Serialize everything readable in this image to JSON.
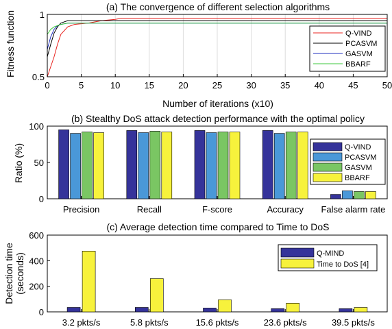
{
  "chart_data": [
    {
      "type": "line",
      "title": "(a) The convergence of different selection algorithms",
      "xlabel": "Number of iterations (x10)",
      "ylabel": "Fitness function",
      "xlim": [
        0,
        50
      ],
      "ylim": [
        0.5,
        1
      ],
      "xticks": [
        "0",
        "5",
        "10",
        "15",
        "20",
        "25",
        "30",
        "35",
        "40",
        "45",
        "50"
      ],
      "yticks": [
        "0.5",
        "1"
      ],
      "legend_position": "right",
      "series": [
        {
          "name": "Q-VIND",
          "color": "#e8231f",
          "x": [
            0,
            0.5,
            1,
            1.5,
            2,
            3,
            4,
            6,
            8,
            10,
            11,
            50
          ],
          "y": [
            0.5,
            0.58,
            0.66,
            0.76,
            0.84,
            0.9,
            0.92,
            0.93,
            0.95,
            0.96,
            0.97,
            0.97
          ]
        },
        {
          "name": "PCASVM",
          "color": "#000000",
          "x": [
            0,
            0.5,
            1,
            1.5,
            2,
            3,
            4,
            50
          ],
          "y": [
            0.66,
            0.76,
            0.85,
            0.9,
            0.93,
            0.95,
            0.95,
            0.95
          ]
        },
        {
          "name": "GASVM",
          "color": "#1f2fbf",
          "x": [
            0,
            0.5,
            1,
            1.5,
            2,
            3,
            50
          ],
          "y": [
            0.72,
            0.82,
            0.88,
            0.91,
            0.92,
            0.93,
            0.93
          ]
        },
        {
          "name": "BBARF",
          "color": "#3cc83c",
          "x": [
            0,
            0.5,
            1,
            1.5,
            2,
            3,
            50
          ],
          "y": [
            0.84,
            0.88,
            0.9,
            0.91,
            0.92,
            0.93,
            0.93
          ]
        }
      ]
    },
    {
      "type": "bar",
      "title": "(b) Stealthy DoS attack detection performance with the optimal policy",
      "xlabel": "",
      "ylabel": "Ratio (%)",
      "ylim": [
        0,
        100
      ],
      "yticks": [
        "0",
        "50",
        "100"
      ],
      "categories": [
        "Precision",
        "Recall",
        "F-score",
        "Accuracy",
        "False alarm rate"
      ],
      "legend_position": "right",
      "series": [
        {
          "name": "Q-VIND",
          "color": "#35339a",
          "values": [
            95,
            94,
            94,
            94,
            6
          ]
        },
        {
          "name": "PCASVM",
          "color": "#4a98d8",
          "values": [
            90,
            91,
            91,
            90,
            11
          ]
        },
        {
          "name": "GASVM",
          "color": "#7ac663",
          "values": [
            92,
            93,
            92,
            92,
            10
          ]
        },
        {
          "name": "BBARF",
          "color": "#f7f23c",
          "values": [
            91,
            92,
            92,
            92,
            10
          ]
        }
      ]
    },
    {
      "type": "bar",
      "title": "(c) Average detection time compared to Time to DoS",
      "xlabel": "",
      "ylabel": "Detection time (seconds)",
      "ylabel_lines": [
        "Detection time",
        "(seconds)"
      ],
      "ylim": [
        0,
        600
      ],
      "yticks": [
        "0",
        "200",
        "400",
        "600"
      ],
      "categories": [
        "3.2 pkts/s",
        "5.8 pkts/s",
        "15.6 pkts/s",
        "23.6 pkts/s",
        "39.5 pkts/s"
      ],
      "legend_position": "top-right",
      "series": [
        {
          "name": "Q-MIND",
          "color": "#35339a",
          "values": [
            35,
            35,
            30,
            25,
            25
          ]
        },
        {
          "name": "Time to DoS [4]",
          "color": "#f7f23c",
          "values": [
            475,
            260,
            95,
            68,
            35
          ]
        }
      ]
    }
  ]
}
